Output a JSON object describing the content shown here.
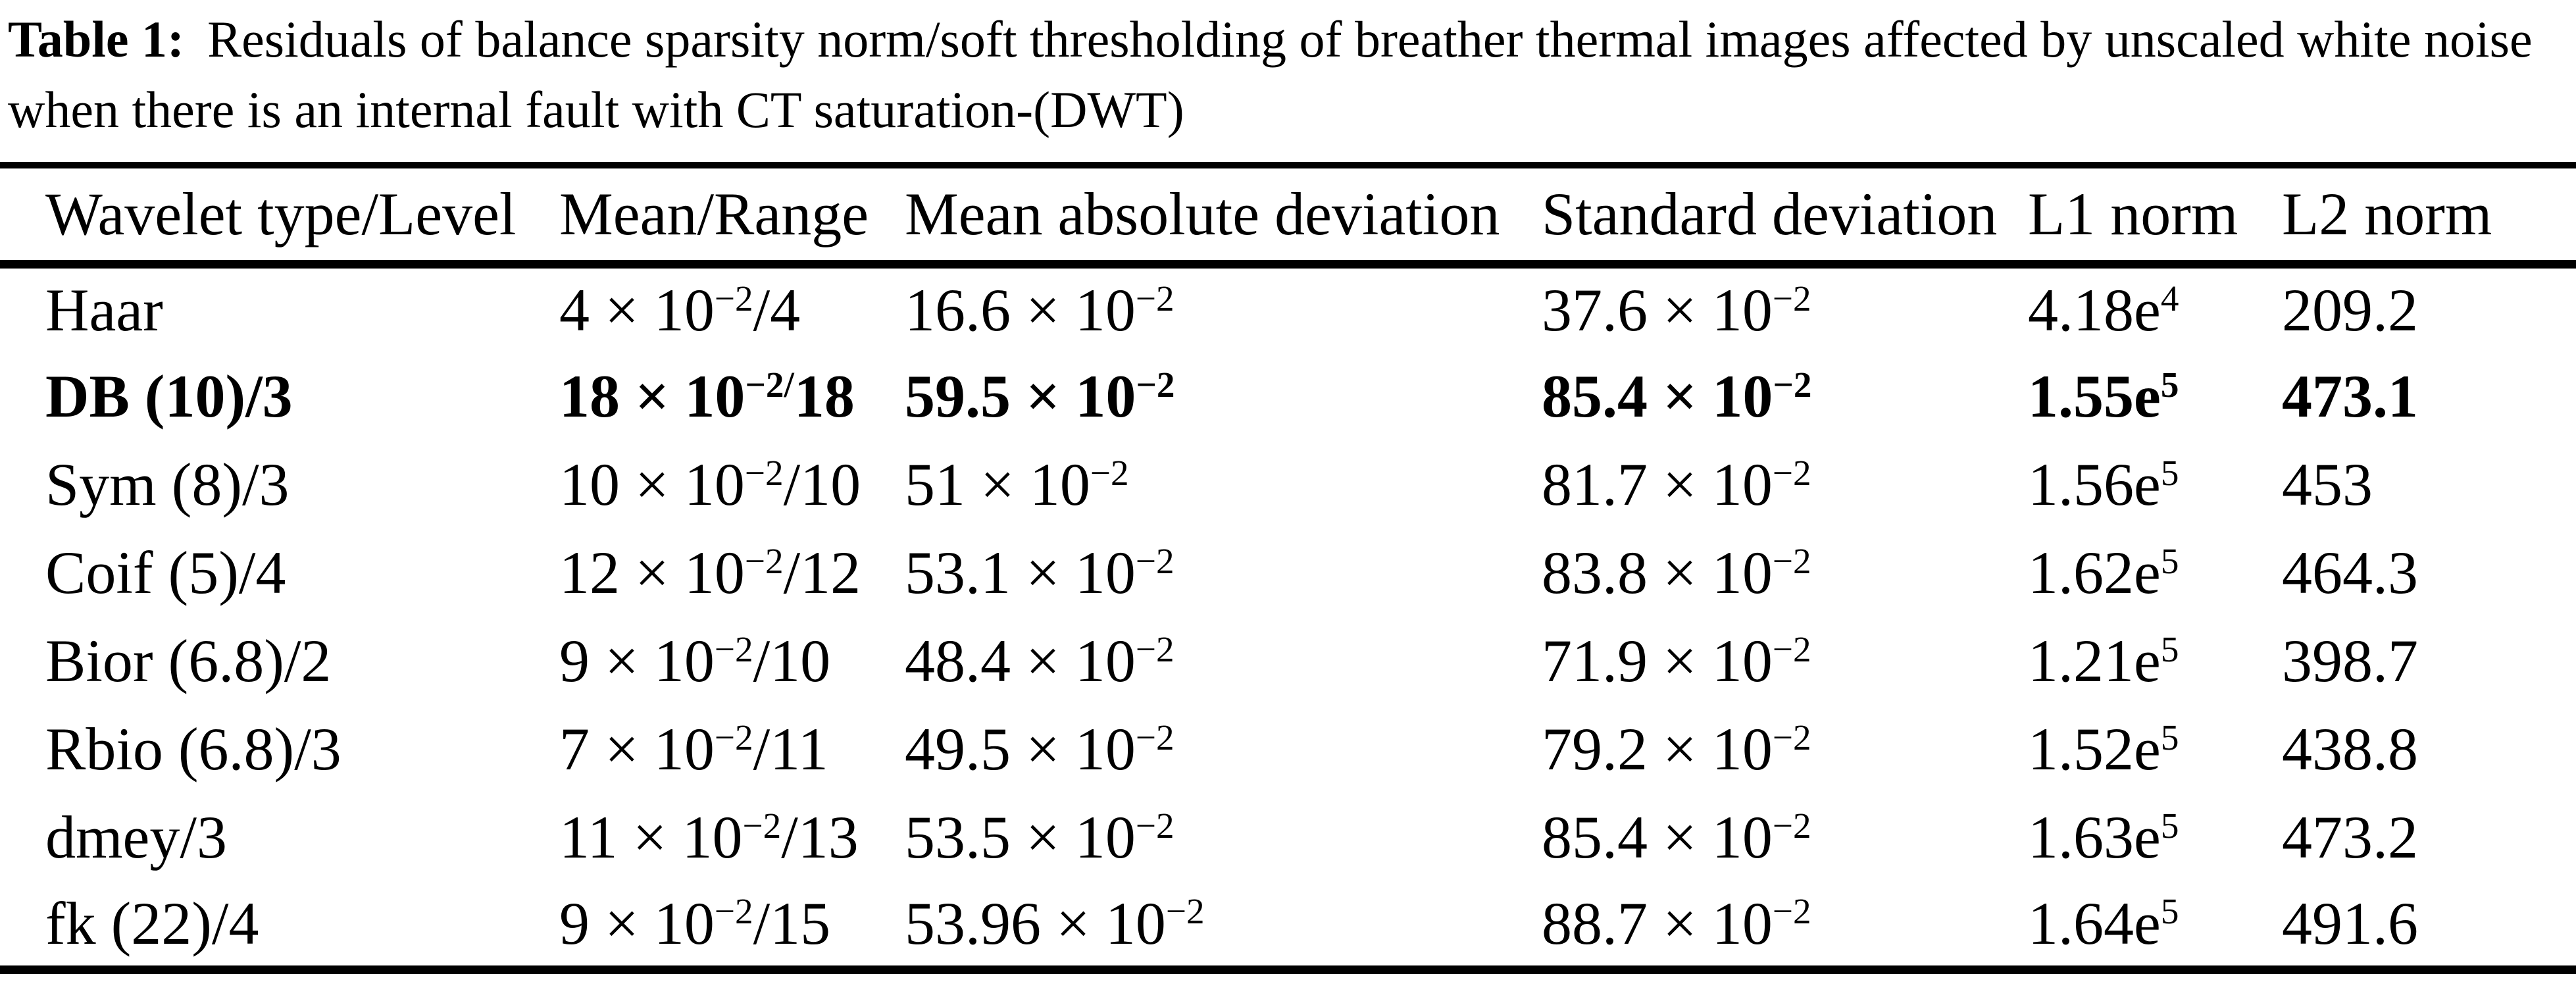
{
  "caption": {
    "label": "Table 1:",
    "text": "Residuals of balance sparsity norm/soft thresholding of breather thermal images affected by unscaled white noise when there is an internal fault with CT saturation-(DWT)"
  },
  "table": {
    "columns": [
      "Wavelet type/Level",
      "Mean/Range",
      "Mean absolute deviation",
      "Standard deviation",
      "L1 norm",
      "L2 norm"
    ],
    "rows": [
      {
        "bold": false,
        "cells": [
          "Haar",
          "4 × 10^{−2}/4",
          "16.6 × 10^{−2}",
          "37.6 × 10^{−2}",
          "4.18e^{4}",
          "209.2"
        ]
      },
      {
        "bold": true,
        "cells": [
          "DB (10)/3",
          "18 × 10^{−2/}18",
          "59.5 × 10^{−2}",
          "85.4 × 10^{−2}",
          "1.55e^{5}",
          "473.1"
        ]
      },
      {
        "bold": false,
        "cells": [
          "Sym (8)/3",
          "10 × 10^{−2}/10",
          "51 × 10^{−2}",
          "81.7 × 10^{−2}",
          "1.56e^{5}",
          "453"
        ]
      },
      {
        "bold": false,
        "cells": [
          "Coif (5)/4",
          "12 × 10^{−2}/12",
          "53.1 × 10^{−2}",
          "83.8 × 10^{−2}",
          "1.62e^{5}",
          "464.3"
        ]
      },
      {
        "bold": false,
        "cells": [
          "Bior (6.8)/2",
          "9 × 10^{−2}/10",
          "48.4 × 10^{−2}",
          "71.9 × 10^{−2}",
          "1.21e^{5}",
          "398.7"
        ]
      },
      {
        "bold": false,
        "cells": [
          "Rbio (6.8)/3",
          "7 × 10^{−2}/11",
          "49.5 × 10^{−2}",
          "79.2 × 10^{−2}",
          "1.52e^{5}",
          "438.8"
        ]
      },
      {
        "bold": false,
        "cells": [
          "dmey/3",
          "11 × 10^{−2}/13",
          "53.5 × 10^{−2}",
          "85.4 × 10^{−2}",
          "1.63e^{5}",
          "473.2"
        ]
      },
      {
        "bold": false,
        "cells": [
          "fk (22)/4",
          "9 × 10^{−2}/15",
          "53.96 × 10^{−2}",
          "88.7 × 10^{−2}",
          "1.64e^{5}",
          "491.6"
        ]
      }
    ]
  },
  "colors": {
    "text": "#000000",
    "background": "#ffffff",
    "rule": "#000000"
  }
}
